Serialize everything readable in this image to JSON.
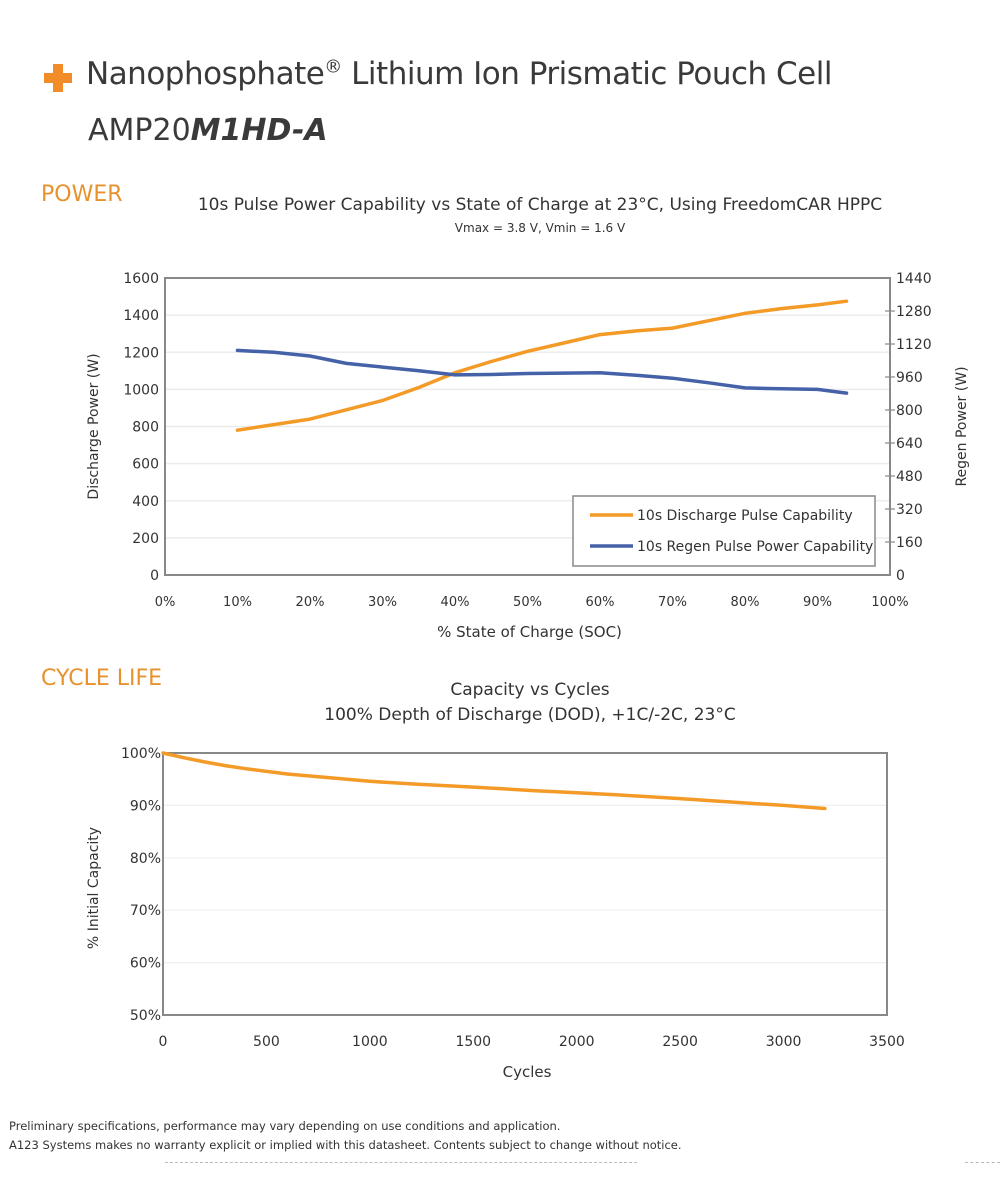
{
  "header": {
    "logo_icon": "plus-icon",
    "title": "Nanophosphate",
    "title_reg": "®",
    "title_rest": " Lithium Ion Prismatic Pouch Cell",
    "model_prefix": "AMP20",
    "model_suffix": "M1HD-A"
  },
  "sections": {
    "power": "POWER",
    "cycle_life": "CYCLE LIFE"
  },
  "footer": {
    "line1": "Preliminary specifications, performance may vary depending on use conditions and application.",
    "line2": "A123 Systems makes no warranty explicit or implied with this datasheet.  Contents subject to change without notice."
  },
  "colors": {
    "accent": "#e8922e",
    "discharge": "#f39a27",
    "regen": "#4562a8"
  },
  "chart_data": [
    {
      "type": "line",
      "title": "10s Pulse Power Capability vs State of Charge at 23°C, Using FreedomCAR HPPC",
      "subtitle": "Vmax = 3.8 V, Vmin = 1.6 V",
      "xlabel": "% State of Charge (SOC)",
      "ylabel": "Discharge Power (W)",
      "y2label": "Regen Power (W)",
      "xlim": [
        0,
        100
      ],
      "ylim": [
        0,
        1600
      ],
      "y2lim": [
        0,
        1440
      ],
      "x_ticks": [
        "0%",
        "10%",
        "20%",
        "30%",
        "40%",
        "50%",
        "60%",
        "70%",
        "80%",
        "90%",
        "100%"
      ],
      "y_ticks": [
        "0",
        "200",
        "400",
        "600",
        "800",
        "1000",
        "1200",
        "1400",
        "1600"
      ],
      "y2_ticks": [
        "0",
        "160",
        "320",
        "480",
        "640",
        "800",
        "960",
        "1120",
        "1280",
        "1440"
      ],
      "grid": true,
      "legend_position": "bottom-right",
      "x": [
        10,
        15,
        20,
        25,
        30,
        35,
        40,
        45,
        50,
        55,
        60,
        65,
        70,
        75,
        80,
        85,
        90,
        94
      ],
      "series": [
        {
          "name": "10s Discharge Pulse Capability",
          "axis": "left",
          "values": [
            780,
            810,
            840,
            890,
            940,
            1010,
            1090,
            1150,
            1205,
            1250,
            1295,
            1315,
            1330,
            1370,
            1410,
            1435,
            1455,
            1475
          ]
        },
        {
          "name": "10s Regen Pulse Power Capability",
          "axis": "right",
          "values": [
            1089,
            1080,
            1062,
            1026,
            1008,
            990,
            970,
            972,
            977,
            979,
            981,
            968,
            954,
            932,
            907,
            903,
            900,
            882
          ]
        }
      ]
    },
    {
      "type": "line",
      "title": "Capacity vs Cycles",
      "subtitle": "100% Depth of Discharge (DOD), +1C/-2C, 23°C",
      "xlabel": "Cycles",
      "ylabel": "% Initial Capacity",
      "xlim": [
        0,
        3500
      ],
      "ylim": [
        50,
        100
      ],
      "x_ticks": [
        "0",
        "500",
        "1000",
        "1500",
        "2000",
        "2500",
        "3000",
        "3500"
      ],
      "y_ticks": [
        "50%",
        "60%",
        "70%",
        "80%",
        "90%",
        "100%"
      ],
      "grid": true,
      "x": [
        0,
        100,
        200,
        300,
        400,
        600,
        800,
        1000,
        1200,
        1500,
        1800,
        2000,
        2200,
        2500,
        2800,
        3000,
        3200
      ],
      "series": [
        {
          "name": "Capacity",
          "values": [
            100,
            99.1,
            98.3,
            97.6,
            97.0,
            96.0,
            95.3,
            94.6,
            94.1,
            93.5,
            92.8,
            92.4,
            92.0,
            91.3,
            90.5,
            90.0,
            89.4
          ]
        }
      ]
    }
  ]
}
